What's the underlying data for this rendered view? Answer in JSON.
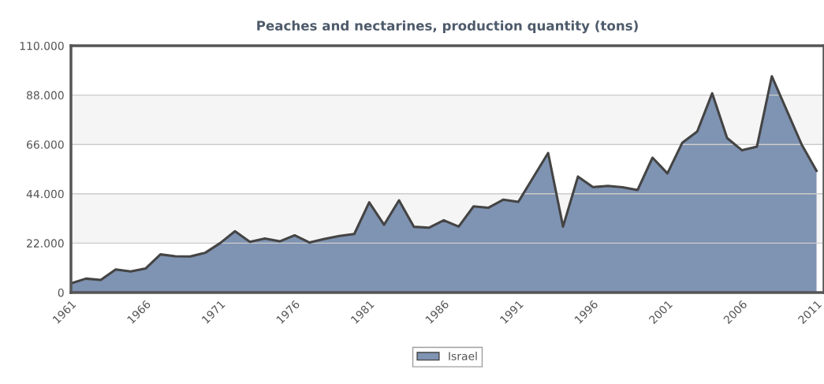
{
  "chart_data": {
    "type": "area",
    "title": "Peaches and nectarines, production quantity (tons)",
    "x": [
      1961,
      1962,
      1963,
      1964,
      1965,
      1966,
      1967,
      1968,
      1969,
      1970,
      1971,
      1972,
      1973,
      1974,
      1975,
      1976,
      1977,
      1978,
      1979,
      1980,
      1981,
      1982,
      1983,
      1984,
      1985,
      1986,
      1987,
      1988,
      1989,
      1990,
      1991,
      1992,
      1993,
      1994,
      1995,
      1996,
      1997,
      1998,
      1999,
      2000,
      2001,
      2002,
      2003,
      2004,
      2005,
      2006,
      2007,
      2008,
      2009,
      2010,
      2011
    ],
    "series": [
      {
        "name": "Israel",
        "color": "#7f93b2",
        "values": [
          4100,
          6200,
          5600,
          10300,
          9400,
          10700,
          17000,
          16200,
          16100,
          17700,
          22000,
          27300,
          22600,
          24100,
          22800,
          25500,
          22300,
          23900,
          25200,
          26100,
          40200,
          30200,
          41100,
          29300,
          28900,
          32200,
          29400,
          38400,
          37800,
          41400,
          40400,
          51300,
          62200,
          29400,
          51700,
          47000,
          47500,
          46900,
          45700,
          60100,
          53100,
          66800,
          71800,
          88800,
          68900,
          63400,
          65000,
          96400,
          81200,
          66000,
          54200
        ]
      }
    ],
    "xlim": [
      1961,
      2011.5
    ],
    "xticks": [
      1961,
      1966,
      1971,
      1976,
      1981,
      1986,
      1991,
      1996,
      2001,
      2006,
      2011
    ],
    "ylim": [
      0,
      110000
    ],
    "yticks": [
      {
        "value": 0,
        "label": "0"
      },
      {
        "value": 22000,
        "label": "22.000"
      },
      {
        "value": 44000,
        "label": "44.000"
      },
      {
        "value": 66000,
        "label": "66.000"
      },
      {
        "value": 88000,
        "label": "88.000"
      },
      {
        "value": 110000,
        "label": "110.000"
      }
    ],
    "bands": [
      {
        "axis": "y",
        "from": 22000,
        "to": 44000,
        "color": "#f5f5f5"
      },
      {
        "axis": "y",
        "from": 66000,
        "to": 88000,
        "color": "#f5f5f5"
      }
    ],
    "grid": "y",
    "legend": "bottom"
  }
}
